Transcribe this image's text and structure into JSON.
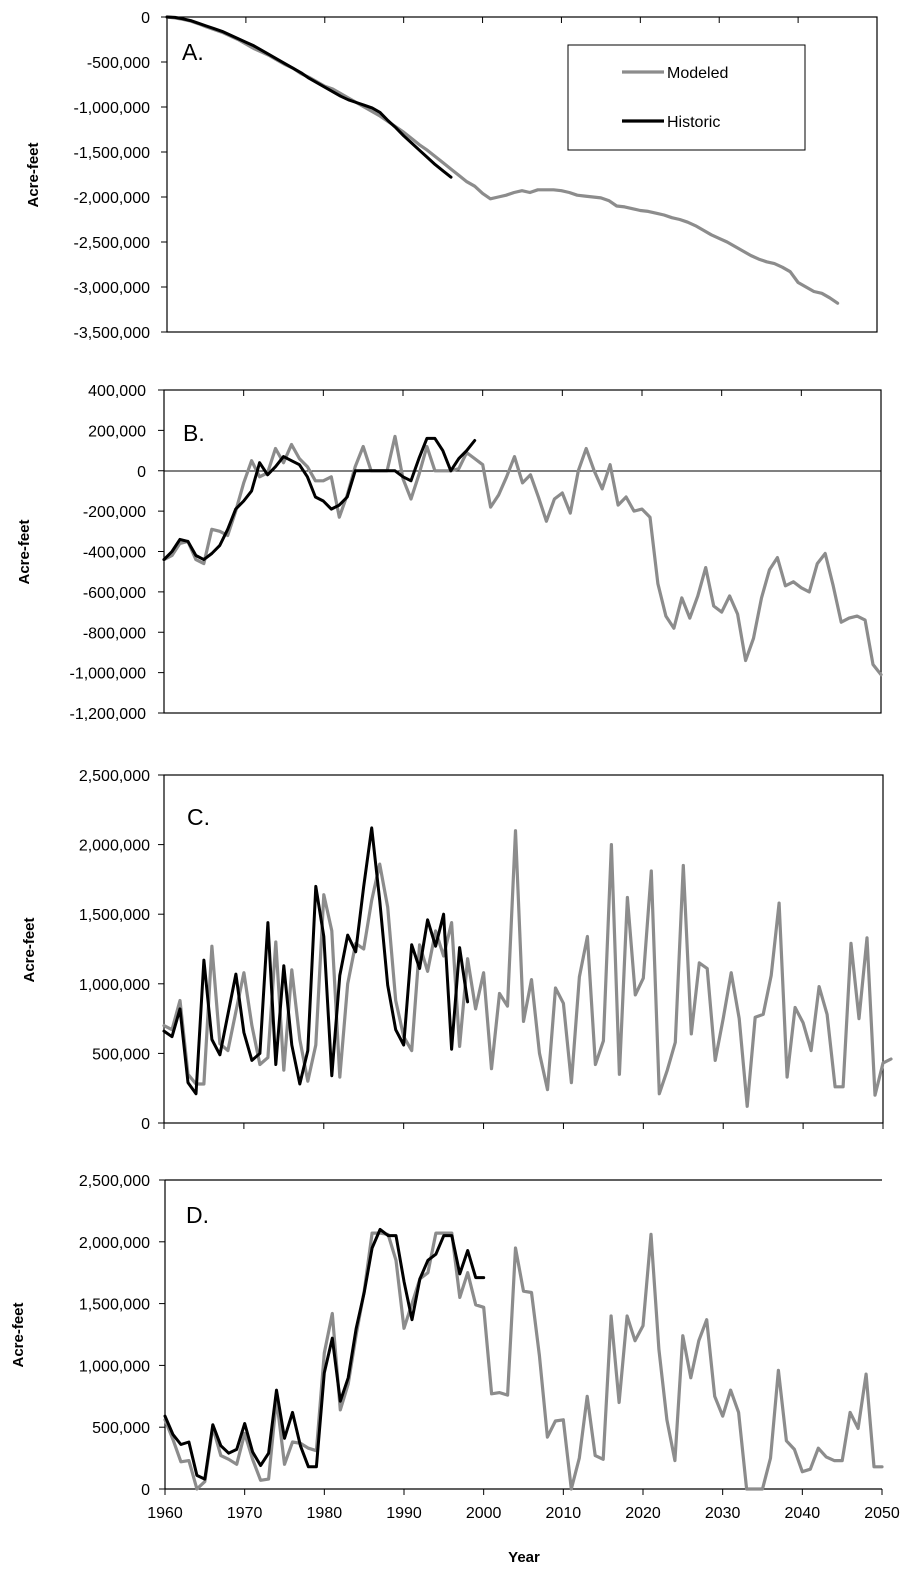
{
  "chart_data": [
    {
      "type": "line",
      "panel": "A.",
      "ylabel": "Acre-feet",
      "ylim": [
        -3500000,
        0
      ],
      "y_ticks": [
        "0",
        "-500,000",
        "-1,000,000",
        "-1,500,000",
        "-2,000,000",
        "-2,500,000",
        "-3,000,000",
        "-3,500,000"
      ],
      "xlim": [
        1960,
        2050
      ],
      "legend": {
        "placement": "top-right",
        "entries": [
          "Modeled",
          "Historic"
        ]
      },
      "series": [
        {
          "name": "Modeled",
          "color": "#8c8c8c",
          "x_start": 1960,
          "values": [
            0,
            -10000,
            -25000,
            -45000,
            -75000,
            -110000,
            -140000,
            -170000,
            -210000,
            -250000,
            -300000,
            -350000,
            -390000,
            -430000,
            -480000,
            -530000,
            -570000,
            -630000,
            -670000,
            -720000,
            -770000,
            -800000,
            -850000,
            -900000,
            -950000,
            -1000000,
            -1050000,
            -1100000,
            -1160000,
            -1220000,
            -1280000,
            -1350000,
            -1420000,
            -1480000,
            -1550000,
            -1620000,
            -1690000,
            -1760000,
            -1830000,
            -1880000,
            -1960000,
            -2020000,
            -2000000,
            -1980000,
            -1950000,
            -1930000,
            -1950000,
            -1920000,
            -1920000,
            -1920000,
            -1930000,
            -1950000,
            -1980000,
            -1990000,
            -2000000,
            -2010000,
            -2040000,
            -2100000,
            -2110000,
            -2130000,
            -2150000,
            -2160000,
            -2180000,
            -2200000,
            -2230000,
            -2250000,
            -2280000,
            -2320000,
            -2370000,
            -2420000,
            -2460000,
            -2500000,
            -2550000,
            -2600000,
            -2650000,
            -2690000,
            -2720000,
            -2740000,
            -2780000,
            -2830000,
            -2950000,
            -3000000,
            -3050000,
            -3070000,
            -3120000,
            -3180000
          ]
        },
        {
          "name": "Historic",
          "color": "#000000",
          "x_start": 1960,
          "values": [
            0,
            -5000,
            -20000,
            -40000,
            -70000,
            -100000,
            -130000,
            -160000,
            -200000,
            -240000,
            -280000,
            -320000,
            -370000,
            -420000,
            -470000,
            -520000,
            -570000,
            -620000,
            -680000,
            -730000,
            -780000,
            -830000,
            -880000,
            -920000,
            -950000,
            -980000,
            -1010000,
            -1060000,
            -1150000,
            -1230000,
            -1320000,
            -1400000,
            -1480000,
            -1560000,
            -1640000,
            -1710000,
            -1780000
          ]
        }
      ]
    },
    {
      "type": "line",
      "panel": "B.",
      "ylabel": "Acre-feet",
      "ylim": [
        -1200000,
        400000
      ],
      "y_ticks": [
        "400,000",
        "200,000",
        "0",
        "-200,000",
        "-400,000",
        "-600,000",
        "-800,000",
        "-1,000,000",
        "-1,200,000"
      ],
      "xlim": [
        1960,
        2050
      ],
      "series": [
        {
          "name": "Modeled",
          "color": "#8c8c8c",
          "x_start": 1960,
          "values": [
            -440000,
            -420000,
            -360000,
            -350000,
            -440000,
            -460000,
            -290000,
            -300000,
            -320000,
            -200000,
            -60000,
            50000,
            -30000,
            -10000,
            110000,
            40000,
            130000,
            60000,
            20000,
            -50000,
            -50000,
            -30000,
            -230000,
            -120000,
            20000,
            120000,
            0,
            0,
            0,
            170000,
            -40000,
            -140000,
            -20000,
            120000,
            0,
            0,
            0,
            10000,
            90000,
            60000,
            30000,
            -180000,
            -120000,
            -30000,
            70000,
            -60000,
            -20000,
            -130000,
            -250000,
            -140000,
            -110000,
            -210000,
            0,
            110000,
            0,
            -90000,
            30000,
            -170000,
            -130000,
            -200000,
            -190000,
            -230000,
            -560000,
            -720000,
            -780000,
            -630000,
            -730000,
            -620000,
            -480000,
            -670000,
            -700000,
            -620000,
            -710000,
            -940000,
            -830000,
            -630000,
            -490000,
            -430000,
            -570000,
            -550000,
            -580000,
            -600000,
            -460000,
            -410000,
            -570000,
            -750000,
            -730000,
            -720000,
            -740000,
            -960000,
            -1010000
          ]
        },
        {
          "name": "Historic",
          "color": "#000000",
          "x_start": 1960,
          "values": [
            -440000,
            -400000,
            -340000,
            -350000,
            -420000,
            -440000,
            -410000,
            -370000,
            -290000,
            -190000,
            -150000,
            -100000,
            40000,
            -20000,
            20000,
            70000,
            50000,
            30000,
            -30000,
            -130000,
            -150000,
            -190000,
            -170000,
            -130000,
            0,
            0,
            0,
            0,
            0,
            0,
            -30000,
            -50000,
            60000,
            160000,
            160000,
            100000,
            0,
            60000,
            100000,
            150000
          ]
        }
      ]
    },
    {
      "type": "line",
      "panel": "C.",
      "ylabel": "Acre-feet",
      "ylim": [
        0,
        2500000
      ],
      "y_ticks": [
        "2,500,000",
        "2,000,000",
        "1,500,000",
        "1,000,000",
        "500,000",
        "0"
      ],
      "xlim": [
        1960,
        2050
      ],
      "series": [
        {
          "name": "Modeled",
          "color": "#8c8c8c",
          "x_start": 1960,
          "values": [
            700000,
            670000,
            880000,
            350000,
            280000,
            280000,
            1270000,
            570000,
            520000,
            800000,
            1080000,
            700000,
            420000,
            470000,
            1300000,
            380000,
            1100000,
            600000,
            300000,
            560000,
            1640000,
            1380000,
            330000,
            1000000,
            1290000,
            1250000,
            1600000,
            1860000,
            1550000,
            880000,
            620000,
            520000,
            1280000,
            1090000,
            1380000,
            1200000,
            1440000,
            550000,
            1180000,
            820000,
            1080000,
            390000,
            930000,
            840000,
            2100000,
            730000,
            1030000,
            500000,
            240000,
            970000,
            860000,
            290000,
            1050000,
            1340000,
            420000,
            590000,
            2000000,
            350000,
            1620000,
            920000,
            1040000,
            1810000,
            210000,
            380000,
            580000,
            1850000,
            640000,
            1150000,
            1110000,
            450000,
            750000,
            1080000,
            750000,
            120000,
            760000,
            780000,
            1060000,
            1580000,
            330000,
            830000,
            720000,
            520000,
            980000,
            780000,
            260000,
            260000,
            1290000,
            750000,
            1330000,
            200000,
            430000,
            460000
          ]
        },
        {
          "name": "Historic",
          "color": "#000000",
          "x_start": 1960,
          "values": [
            660000,
            620000,
            820000,
            290000,
            210000,
            1170000,
            600000,
            490000,
            780000,
            1070000,
            650000,
            450000,
            500000,
            1440000,
            420000,
            1130000,
            560000,
            280000,
            520000,
            1700000,
            1340000,
            340000,
            1060000,
            1350000,
            1230000,
            1700000,
            2120000,
            1600000,
            990000,
            670000,
            560000,
            1280000,
            1110000,
            1460000,
            1270000,
            1500000,
            530000,
            1260000,
            870000
          ]
        }
      ]
    },
    {
      "type": "line",
      "panel": "D.",
      "ylabel": "Acre-feet",
      "xlabel": "Year",
      "ylim": [
        0,
        2500000
      ],
      "y_ticks": [
        "2,500,000",
        "2,000,000",
        "1,500,000",
        "1,000,000",
        "500,000",
        "0"
      ],
      "xlim": [
        1960,
        2050
      ],
      "x_ticks": [
        "1960",
        "1970",
        "1980",
        "1990",
        "2000",
        "2010",
        "2020",
        "2030",
        "2040",
        "2050"
      ],
      "series": [
        {
          "name": "Modeled",
          "color": "#8c8c8c",
          "x_start": 1960,
          "values": [
            560000,
            400000,
            220000,
            230000,
            0,
            60000,
            500000,
            270000,
            240000,
            200000,
            450000,
            240000,
            70000,
            80000,
            730000,
            200000,
            380000,
            370000,
            330000,
            310000,
            1100000,
            1420000,
            640000,
            850000,
            1250000,
            1600000,
            2070000,
            2070000,
            2060000,
            1850000,
            1300000,
            1500000,
            1700000,
            1750000,
            2070000,
            2070000,
            2070000,
            1550000,
            1750000,
            1490000,
            1470000,
            770000,
            780000,
            760000,
            1950000,
            1600000,
            1590000,
            1080000,
            420000,
            550000,
            560000,
            0,
            250000,
            750000,
            270000,
            240000,
            1400000,
            700000,
            1400000,
            1200000,
            1320000,
            2060000,
            1130000,
            560000,
            230000,
            1240000,
            900000,
            1200000,
            1370000,
            750000,
            590000,
            800000,
            620000,
            0,
            0,
            0,
            250000,
            960000,
            390000,
            320000,
            140000,
            160000,
            330000,
            260000,
            230000,
            230000,
            620000,
            490000,
            930000,
            180000,
            180000
          ]
        },
        {
          "name": "Historic",
          "color": "#000000",
          "x_start": 1960,
          "values": [
            590000,
            440000,
            360000,
            380000,
            110000,
            80000,
            520000,
            350000,
            290000,
            320000,
            530000,
            300000,
            190000,
            290000,
            800000,
            410000,
            620000,
            350000,
            180000,
            180000,
            940000,
            1220000,
            710000,
            900000,
            1300000,
            1590000,
            1950000,
            2100000,
            2050000,
            2050000,
            1680000,
            1370000,
            1700000,
            1850000,
            1900000,
            2050000,
            2050000,
            1740000,
            1930000,
            1710000,
            1710000
          ]
        }
      ]
    }
  ]
}
